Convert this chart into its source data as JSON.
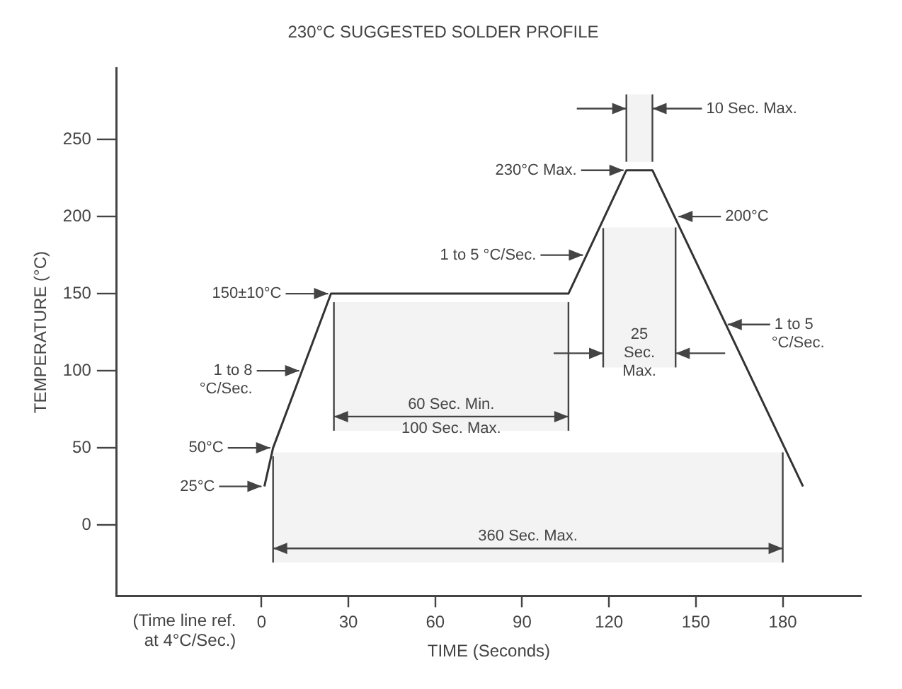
{
  "chart_data": {
    "type": "line",
    "title": "230°C SUGGESTED SOLDER PROFILE",
    "xlabel": "TIME (Seconds)",
    "ylabel": "TEMPERATURE (°C)",
    "series": [
      {
        "x": [
          1,
          4,
          24,
          106,
          126,
          135,
          187
        ],
        "values": [
          25,
          50,
          150,
          150,
          230,
          230,
          25
        ],
        "color": "#333333"
      }
    ],
    "xlim": [
      -50,
      207
    ],
    "ylim": [
      -46,
      296
    ],
    "xticks": [
      0,
      30,
      60,
      90,
      120,
      150,
      180
    ],
    "yticks": [
      0,
      50,
      100,
      150,
      200,
      250
    ],
    "grid": false,
    "marker": "none",
    "line_style": "solid",
    "bands": [
      {
        "axis": "x",
        "from": 4,
        "to": 180,
        "label": "360 Sec. Max.",
        "color": "#f3f3f3"
      },
      {
        "axis": "x",
        "from": 25,
        "to": 106,
        "label": "60 Sec. Min.\n100 Sec. Max.",
        "color": "#f3f3f3"
      },
      {
        "axis": "x",
        "from": 118,
        "to": 143,
        "label": "25\nSec.\nMax.",
        "color": "#f3f3f3"
      },
      {
        "axis": "x",
        "from": 126,
        "to": 135,
        "label": "10 Sec. Max.",
        "color": "#f3f3f3"
      }
    ],
    "annotations": [
      "(Time line ref.\nat 4°C/Sec.)",
      {
        "text": "150±10°C",
        "x": 24,
        "y": 150
      },
      {
        "text": "1 to 8\n°C/Sec.",
        "x": 14,
        "y": 100
      },
      {
        "text": "50°C",
        "x": 4,
        "y": 50
      },
      {
        "text": "25°C",
        "x": 1,
        "y": 25
      },
      {
        "text": "1 to 5 °C/Sec.",
        "x": 112,
        "y": 175
      },
      {
        "text": "230°C Max.",
        "x": 126,
        "y": 230
      },
      {
        "text": "200°C",
        "x": 143,
        "y": 200
      },
      {
        "text": "1 to 5\n°C/Sec.",
        "x": 160,
        "y": 130
      }
    ]
  }
}
